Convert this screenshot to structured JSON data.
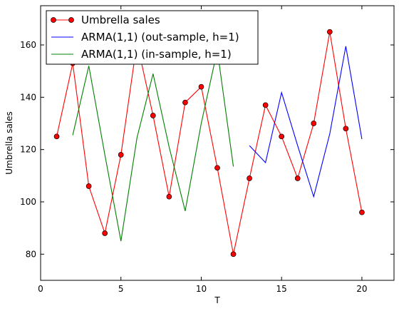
{
  "chart_data": {
    "type": "line",
    "title": "",
    "xlabel": "T",
    "ylabel": "Umbrella sales",
    "xlim": [
      0,
      22
    ],
    "ylim": [
      70,
      175
    ],
    "xticks": [
      0,
      5,
      10,
      15,
      20
    ],
    "yticks": [
      80,
      100,
      120,
      140,
      160
    ],
    "grid": false,
    "legend_position": "top-left",
    "series": [
      {
        "name": "Umbrella sales",
        "color": "#ff0000",
        "marker": "circle",
        "x": [
          1,
          2,
          3,
          4,
          5,
          6,
          7,
          8,
          9,
          10,
          11,
          12,
          13,
          14,
          15,
          16,
          17,
          18,
          19,
          20
        ],
        "values": [
          125,
          153,
          106,
          88,
          118,
          161,
          133,
          102,
          138,
          144,
          113,
          80,
          109,
          137,
          125,
          109,
          130,
          165,
          128,
          96
        ]
      },
      {
        "name": "ARMA(1,1) (out-sample, h=1)",
        "color": "#0000ff",
        "marker": "none",
        "x": [
          13,
          14,
          15,
          16,
          17,
          18,
          19,
          20
        ],
        "values": [
          121.5,
          115,
          141.8,
          121.5,
          102,
          126,
          159.5,
          124
        ]
      },
      {
        "name": "ARMA(1,1) (in-sample, h=1)",
        "color": "#008000",
        "marker": "none",
        "x": [
          2,
          3,
          4,
          5,
          6,
          7,
          8,
          9,
          10,
          11,
          12
        ],
        "values": [
          125.5,
          152,
          118,
          85,
          124.5,
          149,
          121,
          96.5,
          130,
          158,
          113.5
        ]
      }
    ]
  }
}
